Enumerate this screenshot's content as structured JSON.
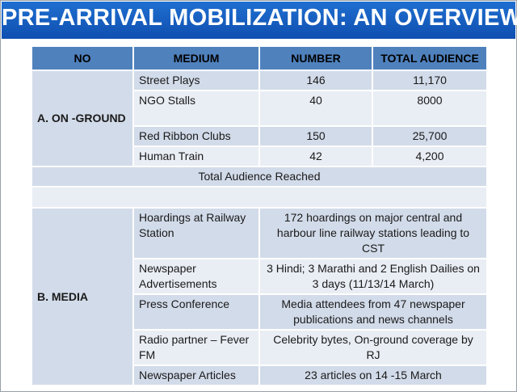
{
  "title": "PRE-ARRIVAL MOBILIZATION: AN OVERVIEW",
  "headers": {
    "no": "NO",
    "medium": "MEDIUM",
    "number": "NUMBER",
    "audience": "TOTAL AUDIENCE"
  },
  "on_ground": {
    "label": "A. ON -GROUND",
    "rows": [
      {
        "medium": "Street Plays",
        "number": "146",
        "audience": "11,170"
      },
      {
        "medium": "NGO Stalls",
        "number": "40",
        "audience": "8000"
      },
      {
        "medium": "Red Ribbon Clubs",
        "number": "150",
        "audience": "25,700"
      },
      {
        "medium": "Human Train",
        "number": "42",
        "audience": "4,200"
      }
    ],
    "total_label": "Total Audience Reached"
  },
  "media": {
    "label": "B. MEDIA",
    "rows": [
      {
        "medium": "Hoardings at Railway Station",
        "detail": "172 hoardings on major central and harbour line railway stations  leading to CST"
      },
      {
        "medium": "Newspaper Advertisements",
        "detail": "3 Hindi; 3 Marathi and 2 English Dailies on 3 days (11/13/14 March)"
      },
      {
        "medium": "Press Conference",
        "detail": "Media attendees from 47 newspaper publications and news channels"
      },
      {
        "medium": "Radio partner – Fever FM",
        "detail": "Celebrity bytes, On-ground coverage by RJ"
      },
      {
        "medium": "Newspaper Articles",
        "detail": "23 articles on 14 -15 March"
      }
    ]
  }
}
